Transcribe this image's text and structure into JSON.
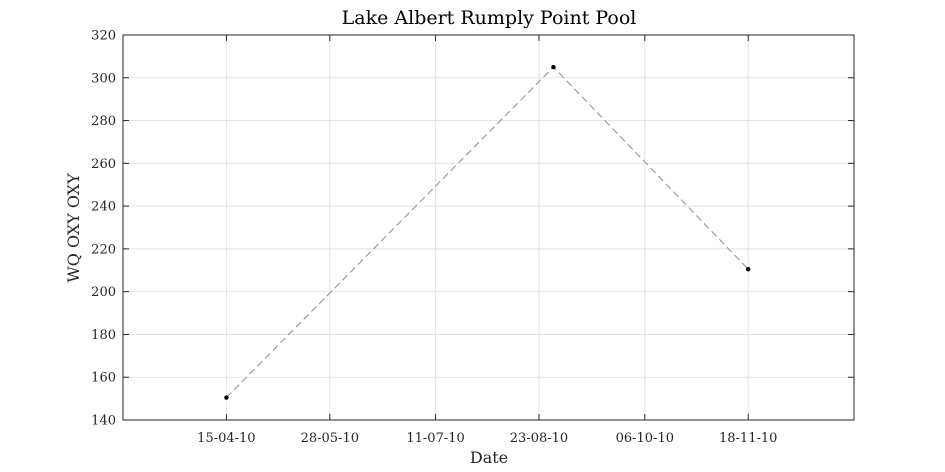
{
  "chart_data": {
    "type": "line",
    "title": "Lake Albert Rumply Point Pool",
    "xlabel": "Date",
    "ylabel": "WQ OXY OXY",
    "x_ticks": [
      "15-04-10",
      "28-05-10",
      "11-07-10",
      "23-08-10",
      "06-10-10",
      "18-11-10"
    ],
    "x_tick_dates": [
      "2010-04-15",
      "2010-05-28",
      "2010-07-11",
      "2010-08-23",
      "2010-10-06",
      "2010-11-18"
    ],
    "xlim": [
      "2010-03-03",
      "2011-01-01"
    ],
    "ylim": [
      140,
      320
    ],
    "y_ticks": [
      140,
      160,
      180,
      200,
      220,
      240,
      260,
      280,
      300,
      320
    ],
    "grid": true,
    "line_style": "dashed",
    "line_color": "#8c8c8c",
    "marker_color": "#000000",
    "series": [
      {
        "x": [
          "2010-04-15",
          "2010-08-29",
          "2010-11-18"
        ],
        "y": [
          150.5,
          305,
          210.5
        ]
      }
    ]
  }
}
